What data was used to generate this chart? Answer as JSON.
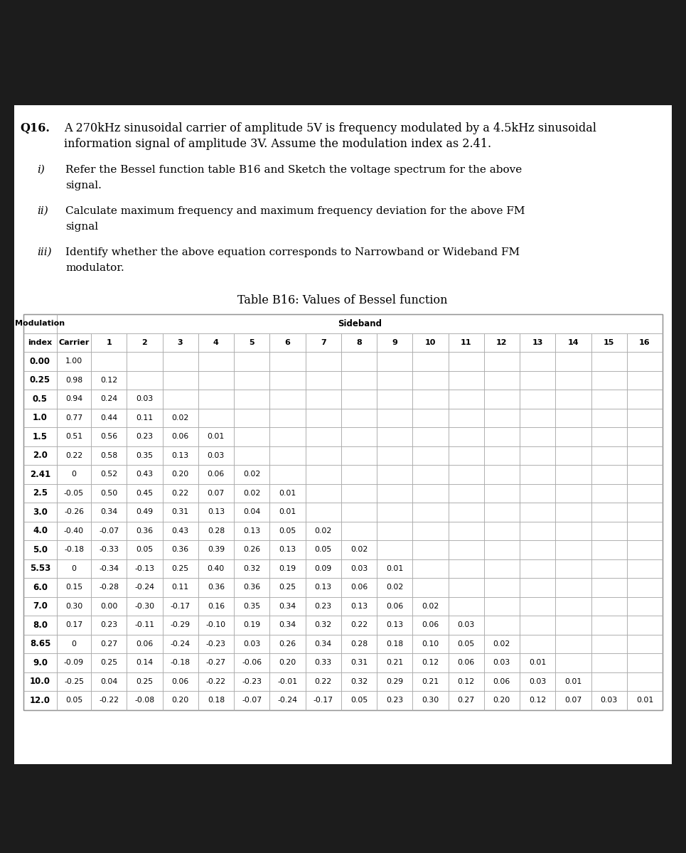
{
  "bg_color": "#1c1c1c",
  "paper_color": "#ffffff",
  "question_label": "Q16.",
  "question_text_line1": "A 270kHz sinusoidal carrier of amplitude 5V is frequency modulated by a 4.5kHz sinusoidal",
  "question_text_line2": "information signal of amplitude 3V. Assume the modulation index as 2.41.",
  "parts": [
    {
      "label": "i)",
      "text_lines": [
        "Refer the Bessel function table B16 and Sketch the voltage spectrum for the above",
        "signal."
      ]
    },
    {
      "label": "ii)",
      "text_lines": [
        "Calculate maximum frequency and maximum frequency deviation for the above FM",
        "signal"
      ]
    },
    {
      "label": "iii)",
      "text_lines": [
        "Identify whether the above equation corresponds to Narrowband or Wideband FM",
        "modulator."
      ]
    }
  ],
  "table_title": "Table B16: Values of Bessel function",
  "col_header_row2": [
    "index",
    "Carrier",
    "1",
    "2",
    "3",
    "4",
    "5",
    "6",
    "7",
    "8",
    "9",
    "10",
    "11",
    "12",
    "13",
    "14",
    "15",
    "16"
  ],
  "rows": [
    {
      "index": "0.00",
      "values": [
        "1.00",
        "",
        "",
        "",
        "",
        "",
        "",
        "",
        "",
        "",
        "",
        "",
        "",
        "",
        "",
        "",
        ""
      ]
    },
    {
      "index": "0.25",
      "values": [
        "0.98",
        "0.12",
        "",
        "",
        "",
        "",
        "",
        "",
        "",
        "",
        "",
        "",
        "",
        "",
        "",
        "",
        ""
      ]
    },
    {
      "index": "0.5",
      "values": [
        "0.94",
        "0.24",
        "0.03",
        "",
        "",
        "",
        "",
        "",
        "",
        "",
        "",
        "",
        "",
        "",
        "",
        "",
        ""
      ]
    },
    {
      "index": "1.0",
      "values": [
        "0.77",
        "0.44",
        "0.11",
        "0.02",
        "",
        "",
        "",
        "",
        "",
        "",
        "",
        "",
        "",
        "",
        "",
        "",
        ""
      ]
    },
    {
      "index": "1.5",
      "values": [
        "0.51",
        "0.56",
        "0.23",
        "0.06",
        "0.01",
        "",
        "",
        "",
        "",
        "",
        "",
        "",
        "",
        "",
        "",
        "",
        ""
      ]
    },
    {
      "index": "2.0",
      "values": [
        "0.22",
        "0.58",
        "0.35",
        "0.13",
        "0.03",
        "",
        "",
        "",
        "",
        "",
        "",
        "",
        "",
        "",
        "",
        "",
        ""
      ]
    },
    {
      "index": "2.41",
      "values": [
        "0",
        "0.52",
        "0.43",
        "0.20",
        "0.06",
        "0.02",
        "",
        "",
        "",
        "",
        "",
        "",
        "",
        "",
        "",
        "",
        ""
      ]
    },
    {
      "index": "2.5",
      "values": [
        "-0.05",
        "0.50",
        "0.45",
        "0.22",
        "0.07",
        "0.02",
        "0.01",
        "",
        "",
        "",
        "",
        "",
        "",
        "",
        "",
        "",
        ""
      ]
    },
    {
      "index": "3.0",
      "values": [
        "-0.26",
        "0.34",
        "0.49",
        "0.31",
        "0.13",
        "0.04",
        "0.01",
        "",
        "",
        "",
        "",
        "",
        "",
        "",
        "",
        "",
        ""
      ]
    },
    {
      "index": "4.0",
      "values": [
        "-0.40",
        "-0.07",
        "0.36",
        "0.43",
        "0.28",
        "0.13",
        "0.05",
        "0.02",
        "",
        "",
        "",
        "",
        "",
        "",
        "",
        "",
        ""
      ]
    },
    {
      "index": "5.0",
      "values": [
        "-0.18",
        "-0.33",
        "0.05",
        "0.36",
        "0.39",
        "0.26",
        "0.13",
        "0.05",
        "0.02",
        "",
        "",
        "",
        "",
        "",
        "",
        "",
        ""
      ]
    },
    {
      "index": "5.53",
      "values": [
        "0",
        "-0.34",
        "-0.13",
        "0.25",
        "0.40",
        "0.32",
        "0.19",
        "0.09",
        "0.03",
        "0.01",
        "",
        "",
        "",
        "",
        "",
        "",
        ""
      ]
    },
    {
      "index": "6.0",
      "values": [
        "0.15",
        "-0.28",
        "-0.24",
        "0.11",
        "0.36",
        "0.36",
        "0.25",
        "0.13",
        "0.06",
        "0.02",
        "",
        "",
        "",
        "",
        "",
        "",
        ""
      ]
    },
    {
      "index": "7.0",
      "values": [
        "0.30",
        "0.00",
        "-0.30",
        "-0.17",
        "0.16",
        "0.35",
        "0.34",
        "0.23",
        "0.13",
        "0.06",
        "0.02",
        "",
        "",
        "",
        "",
        "",
        ""
      ]
    },
    {
      "index": "8.0",
      "values": [
        "0.17",
        "0.23",
        "-0.11",
        "-0.29",
        "-0.10",
        "0.19",
        "0.34",
        "0.32",
        "0.22",
        "0.13",
        "0.06",
        "0.03",
        "",
        "",
        "",
        "",
        ""
      ]
    },
    {
      "index": "8.65",
      "values": [
        "0",
        "0.27",
        "0.06",
        "-0.24",
        "-0.23",
        "0.03",
        "0.26",
        "0.34",
        "0.28",
        "0.18",
        "0.10",
        "0.05",
        "0.02",
        "",
        "",
        "",
        ""
      ]
    },
    {
      "index": "9.0",
      "values": [
        "-0.09",
        "0.25",
        "0.14",
        "-0.18",
        "-0.27",
        "-0.06",
        "0.20",
        "0.33",
        "0.31",
        "0.21",
        "0.12",
        "0.06",
        "0.03",
        "0.01",
        "",
        "",
        ""
      ]
    },
    {
      "index": "10.0",
      "values": [
        "-0.25",
        "0.04",
        "0.25",
        "0.06",
        "-0.22",
        "-0.23",
        "-0.01",
        "0.22",
        "0.32",
        "0.29",
        "0.21",
        "0.12",
        "0.06",
        "0.03",
        "0.01",
        "",
        ""
      ]
    },
    {
      "index": "12.0",
      "values": [
        "0.05",
        "-0.22",
        "-0.08",
        "0.20",
        "0.18",
        "-0.07",
        "-0.24",
        "-0.17",
        "0.05",
        "0.23",
        "0.30",
        "0.27",
        "0.20",
        "0.12",
        "0.07",
        "0.03",
        "0.01"
      ]
    }
  ]
}
